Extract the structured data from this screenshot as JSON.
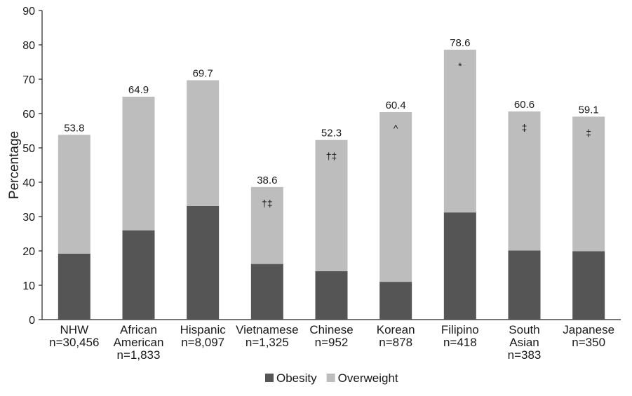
{
  "chart_data": {
    "type": "bar",
    "stacked": true,
    "ylabel": "Percentage",
    "ylim": [
      0,
      90
    ],
    "yticks": [
      "0",
      "10",
      "20",
      "30",
      "40",
      "50",
      "60",
      "70",
      "80",
      "90"
    ],
    "grid": false,
    "legend_position": "bottom",
    "categories": [
      {
        "name": "NHW",
        "lines": [
          "NHW",
          "n=30,456"
        ]
      },
      {
        "name": "African American",
        "lines": [
          "African",
          "American",
          "n=1,833"
        ]
      },
      {
        "name": "Hispanic",
        "lines": [
          "Hispanic",
          "n=8,097"
        ]
      },
      {
        "name": "Vietnamese",
        "lines": [
          "Vietnamese",
          "n=1,325"
        ]
      },
      {
        "name": "Chinese",
        "lines": [
          "Chinese",
          "n=952"
        ]
      },
      {
        "name": "Korean",
        "lines": [
          "Korean",
          "n=878"
        ]
      },
      {
        "name": "Filipino",
        "lines": [
          "Filipino",
          "n=418"
        ]
      },
      {
        "name": "South Asian",
        "lines": [
          "South",
          "Asian",
          "n=383"
        ]
      },
      {
        "name": "Japanese",
        "lines": [
          "Japanese",
          "n=350"
        ]
      }
    ],
    "series": [
      {
        "name": "Obesity",
        "color": "#555555",
        "values": [
          19.2,
          26.0,
          33.1,
          16.2,
          14.1,
          11.0,
          31.2,
          20.1,
          19.9
        ]
      },
      {
        "name": "Overweight",
        "color": "#bdbdbd",
        "values": [
          34.6,
          38.9,
          36.6,
          22.4,
          38.2,
          49.4,
          47.4,
          40.5,
          39.2
        ]
      }
    ],
    "totals": [
      "53.8",
      "64.9",
      "69.7",
      "38.6",
      "52.3",
      "60.4",
      "78.6",
      "60.6",
      "59.1"
    ],
    "annotations": [
      "",
      "",
      "",
      "†‡",
      "†‡",
      "^",
      "*",
      "‡",
      "‡"
    ]
  }
}
